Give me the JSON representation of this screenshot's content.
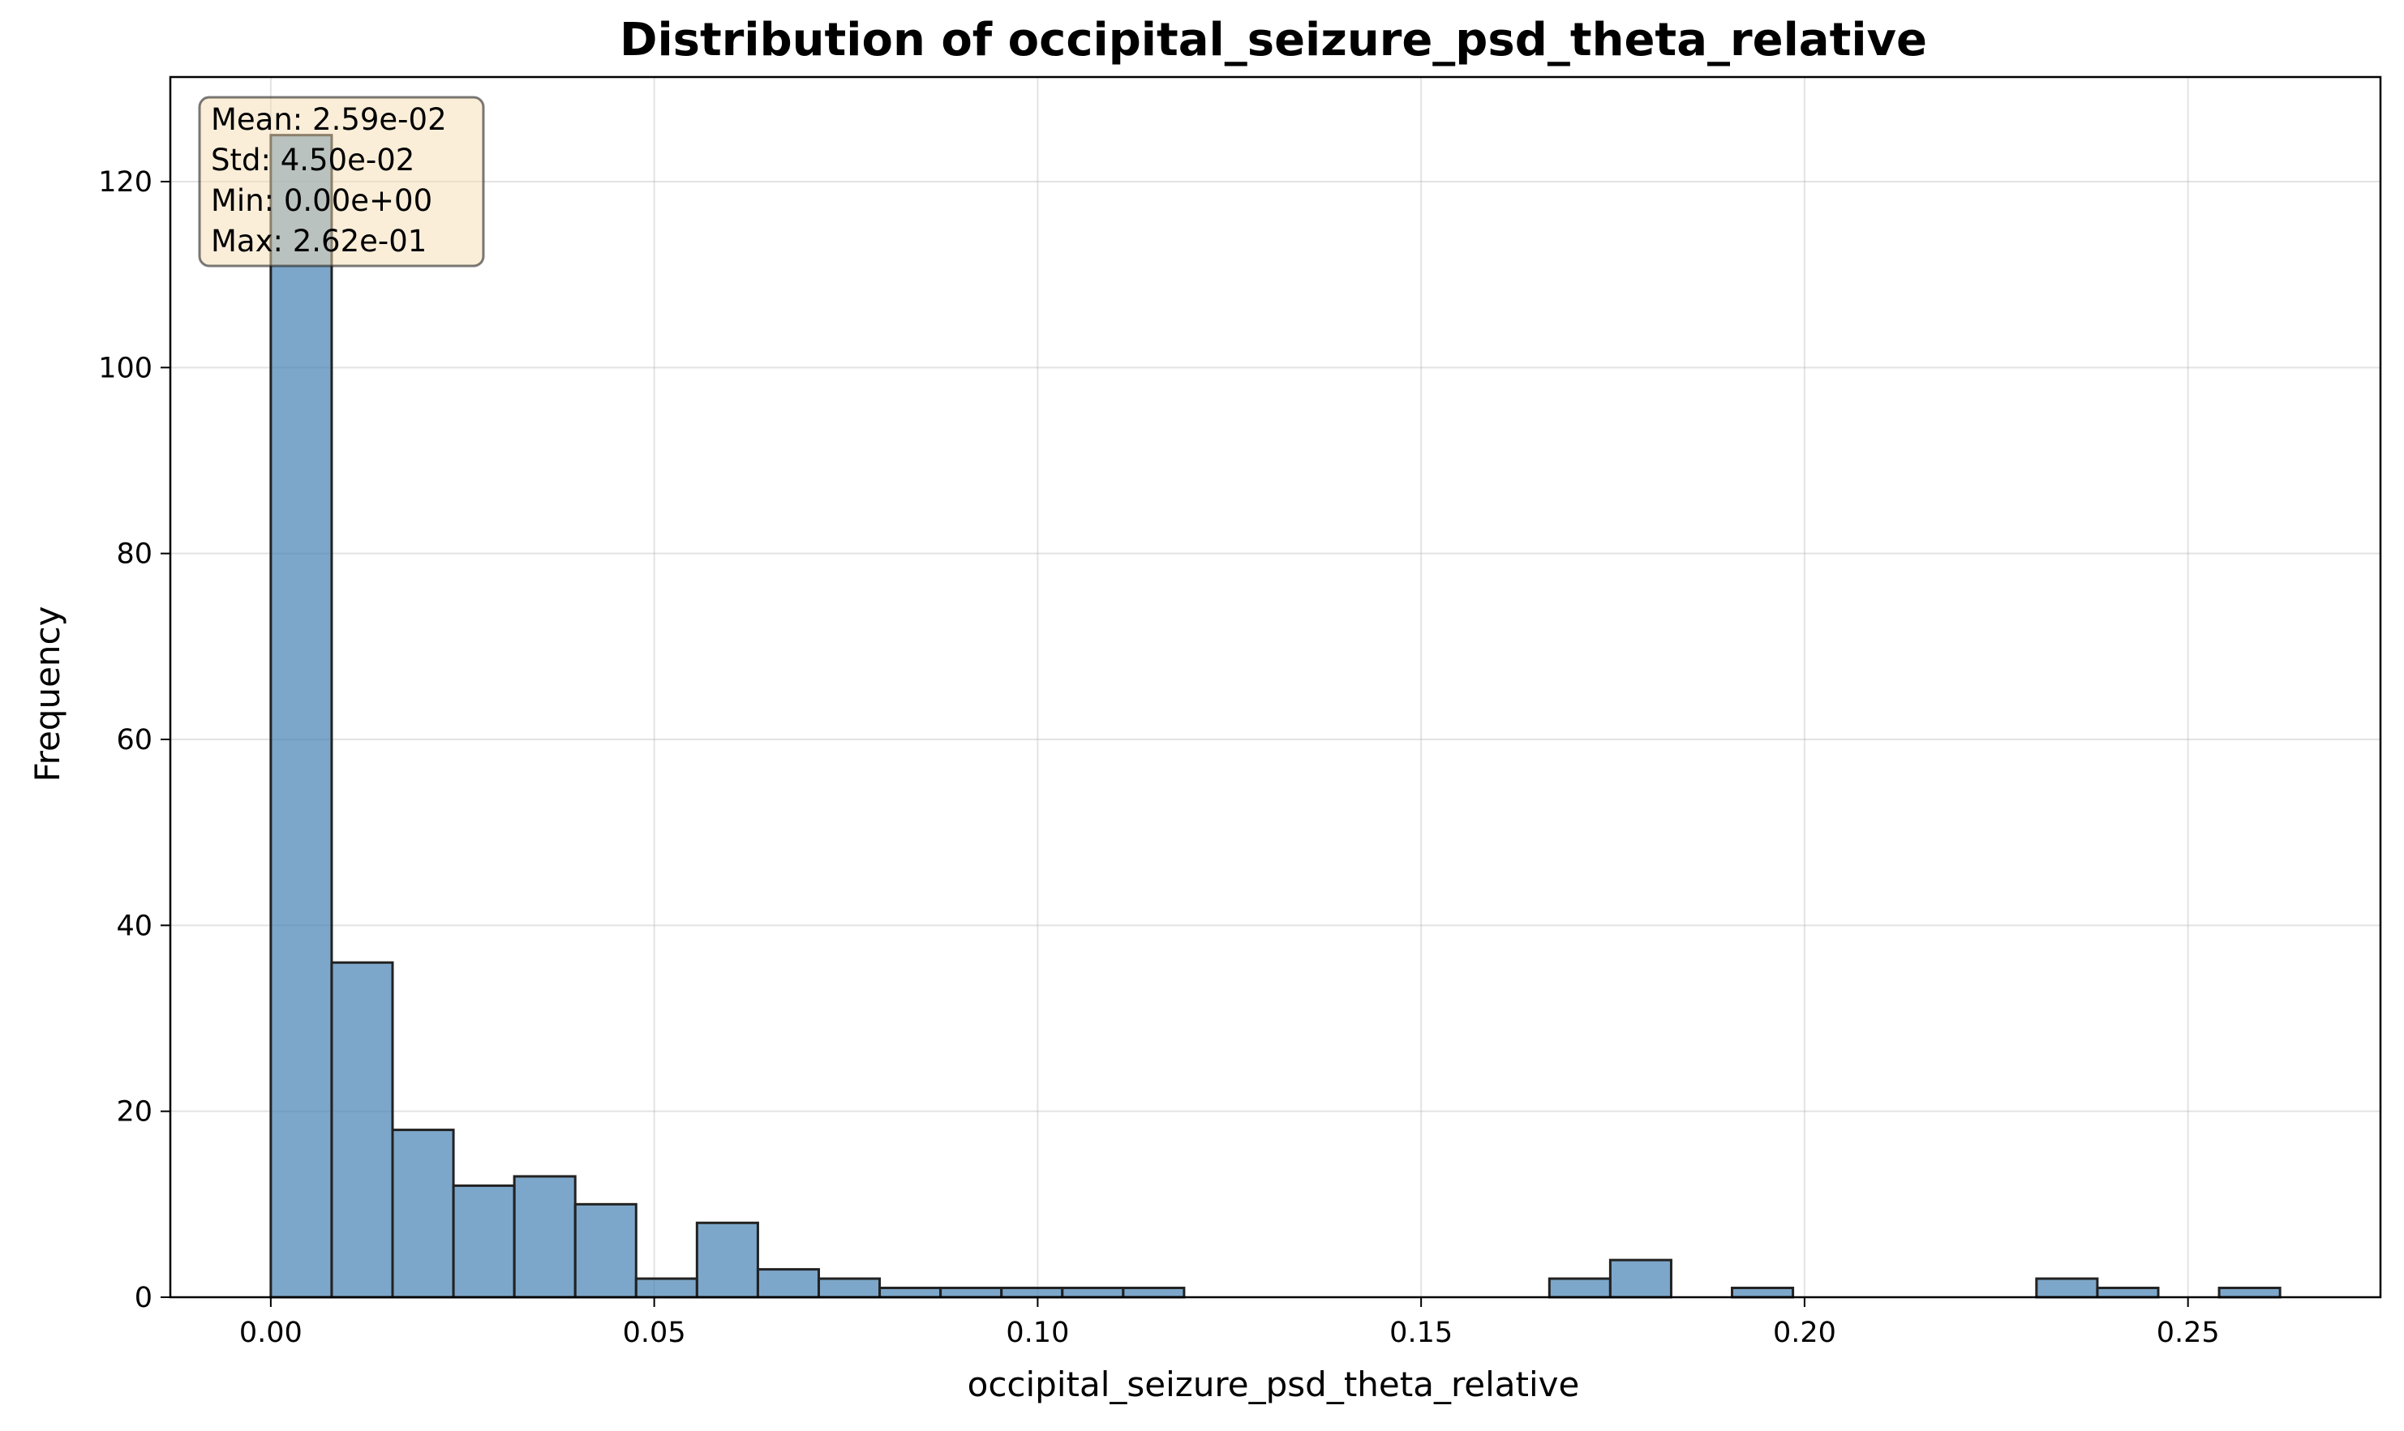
{
  "chart_data": {
    "type": "bar",
    "title": "Distribution of occipital_seizure_psd_theta_relative",
    "xlabel": "occipital_seizure_psd_theta_relative",
    "ylabel": "Frequency",
    "xlim": [
      -0.0131,
      0.2751
    ],
    "ylim": [
      0,
      131.25
    ],
    "xticks": [
      0.0,
      0.05,
      0.1,
      0.15,
      0.2,
      0.25
    ],
    "xtick_labels": [
      "0.00",
      "0.05",
      "0.10",
      "0.15",
      "0.20",
      "0.25"
    ],
    "yticks": [
      0,
      20,
      40,
      60,
      80,
      100,
      120
    ],
    "ytick_labels": [
      "0",
      "20",
      "40",
      "60",
      "80",
      "100",
      "120"
    ],
    "grid": true,
    "bar_color": "#4682b4",
    "bin_range": [
      0.0,
      0.262
    ],
    "values": [
      125,
      36,
      18,
      12,
      13,
      10,
      2,
      8,
      3,
      2,
      1,
      1,
      1,
      1,
      1,
      0,
      0,
      0,
      0,
      0,
      0,
      2,
      4,
      0,
      1,
      0,
      0,
      0,
      0,
      2,
      1,
      0,
      1
    ],
    "stats_box": {
      "placement": "top-left",
      "background": "#f5deb3",
      "lines": [
        "Mean: 2.59e-02",
        "Std: 4.50e-02",
        "Min: 0.00e+00",
        "Max: 2.62e-01"
      ]
    }
  }
}
